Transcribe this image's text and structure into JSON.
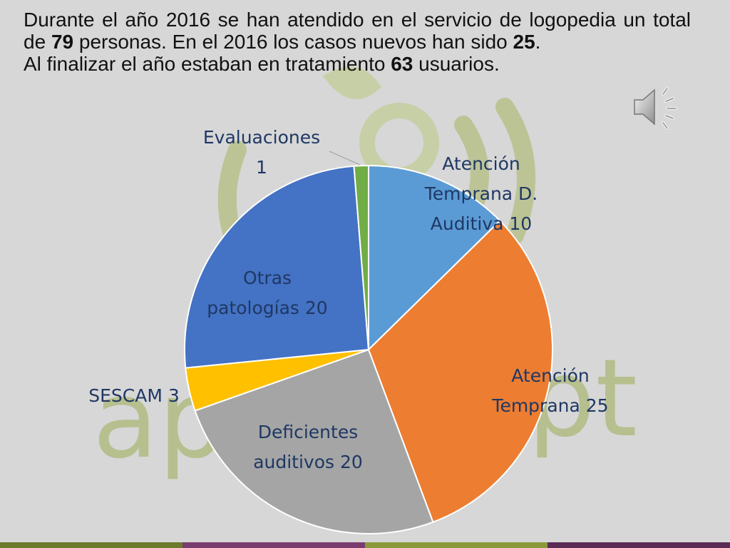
{
  "intro": {
    "line1_a": "Durante el año 2016 se han atendido en el servicio de logopedia un  total de ",
    "total": "79",
    "line1_b": " personas.  En el 2016  los casos nuevos han sido ",
    "new_cases": "25",
    "line1_c": ".",
    "line2_a": "Al finalizar el año estaban en tratamiento ",
    "in_treatment": "63",
    "line2_b": " usuarios."
  },
  "watermark": {
    "text_left": "ap",
    "text_right": "pt"
  },
  "speaker_icon": "speaker-icon",
  "chart_data": {
    "type": "pie",
    "title": "",
    "start_angle_deg": 0,
    "direction": "clockwise",
    "slices": [
      {
        "label_lines": [
          "Atención",
          "Temprana D.",
          "Auditiva 10"
        ],
        "value": 10,
        "color": "#5b9bd5"
      },
      {
        "label_lines": [
          "Atención",
          "Temprana 25"
        ],
        "value": 25,
        "color": "#ed7d31"
      },
      {
        "label_lines": [
          "Deficientes",
          "auditivos 20"
        ],
        "value": 20,
        "color": "#a5a5a5"
      },
      {
        "label_lines": [
          "SESCAM  3"
        ],
        "value": 3,
        "color": "#ffc000"
      },
      {
        "label_lines": [
          "Otras",
          "patologías 20"
        ],
        "value": 20,
        "color": "#4472c4"
      },
      {
        "label_lines": [
          "Evaluaciones",
          "1"
        ],
        "value": 1,
        "color": "#70ad47"
      }
    ],
    "legend": "none",
    "label_color": "#1f3864"
  },
  "colors": {
    "background": "#d7d7d7",
    "watermark": "#b6bf8e",
    "bar": [
      "#6b7a2b",
      "#7a3c6e",
      "#8a9a3a",
      "#5c2b55"
    ]
  }
}
